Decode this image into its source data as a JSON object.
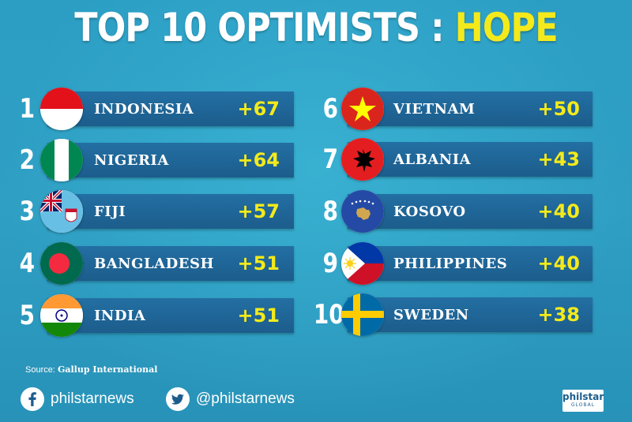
{
  "title": {
    "main": "TOP 10 OPTIMISTS :",
    "highlight": "HOPE"
  },
  "rankings": [
    {
      "rank": "1",
      "country": "INDONESIA",
      "score": "+67",
      "flag": "indonesia-flag-icon"
    },
    {
      "rank": "2",
      "country": "NIGERIA",
      "score": "+64",
      "flag": "nigeria-flag-icon"
    },
    {
      "rank": "3",
      "country": "FIJI",
      "score": "+57",
      "flag": "fiji-flag-icon"
    },
    {
      "rank": "4",
      "country": "BANGLADESH",
      "score": "+51",
      "flag": "bangladesh-flag-icon"
    },
    {
      "rank": "5",
      "country": "INDIA",
      "score": "+51",
      "flag": "india-flag-icon"
    },
    {
      "rank": "6",
      "country": "VIETNAM",
      "score": "+50",
      "flag": "vietnam-flag-icon"
    },
    {
      "rank": "7",
      "country": "ALBANIA",
      "score": "+43",
      "flag": "albania-flag-icon"
    },
    {
      "rank": "8",
      "country": "KOSOVO",
      "score": "+40",
      "flag": "kosovo-flag-icon"
    },
    {
      "rank": "9",
      "country": "PHILIPPINES",
      "score": "+40",
      "flag": "philippines-flag-icon"
    },
    {
      "rank": "10",
      "country": "SWEDEN",
      "score": "+38",
      "flag": "sweden-flag-icon"
    }
  ],
  "source": {
    "label": "Source:",
    "name": "Gallup International"
  },
  "social": {
    "facebook": "philstarnews",
    "twitter": "@philstarnews"
  },
  "logo": {
    "line1": "philstar",
    "line2": "GLOBAL"
  },
  "colors": {
    "background": "#2aa7c9",
    "bar": "#1f64a0",
    "highlight": "#f4ea1b"
  }
}
